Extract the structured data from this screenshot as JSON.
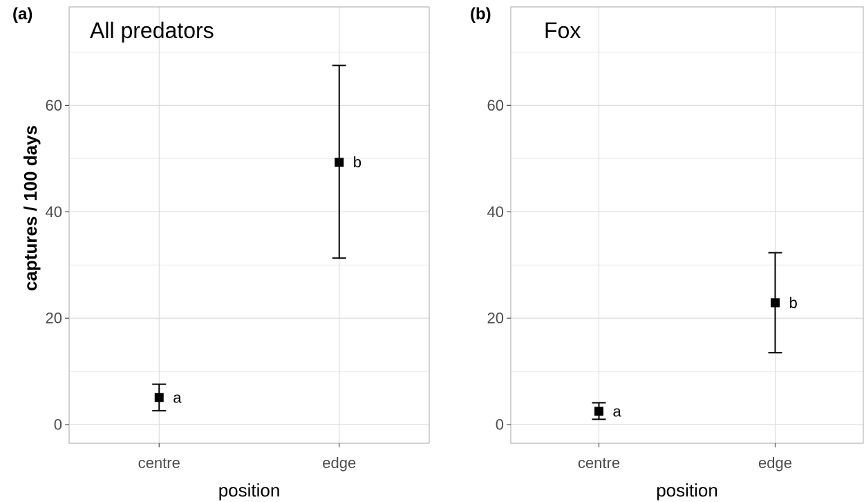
{
  "figure": {
    "ylabel": "captures / 100 days"
  },
  "chart_data": [
    {
      "type": "scatter",
      "panel_tag": "(a)",
      "title": "All predators",
      "xlabel": "position",
      "ylabel": "captures / 100 days",
      "categories": [
        "centre",
        "edge"
      ],
      "yticks": [
        0,
        20,
        40,
        60
      ],
      "ylim": [
        -3.5,
        78.5
      ],
      "grid": true,
      "points": [
        {
          "x": "centre",
          "y": 5.1,
          "lower": 2.6,
          "upper": 7.6,
          "label": "a"
        },
        {
          "x": "edge",
          "y": 49.3,
          "lower": 31.3,
          "upper": 67.5,
          "label": "b"
        }
      ]
    },
    {
      "type": "scatter",
      "panel_tag": "(b)",
      "title": "Fox",
      "xlabel": "position",
      "ylabel": "",
      "categories": [
        "centre",
        "edge"
      ],
      "yticks": [
        0,
        20,
        40,
        60
      ],
      "ylim": [
        -3.5,
        78.5
      ],
      "grid": true,
      "points": [
        {
          "x": "centre",
          "y": 2.5,
          "lower": 1.0,
          "upper": 4.1,
          "label": "a"
        },
        {
          "x": "edge",
          "y": 22.9,
          "lower": 13.5,
          "upper": 32.3,
          "label": "b"
        }
      ]
    }
  ]
}
